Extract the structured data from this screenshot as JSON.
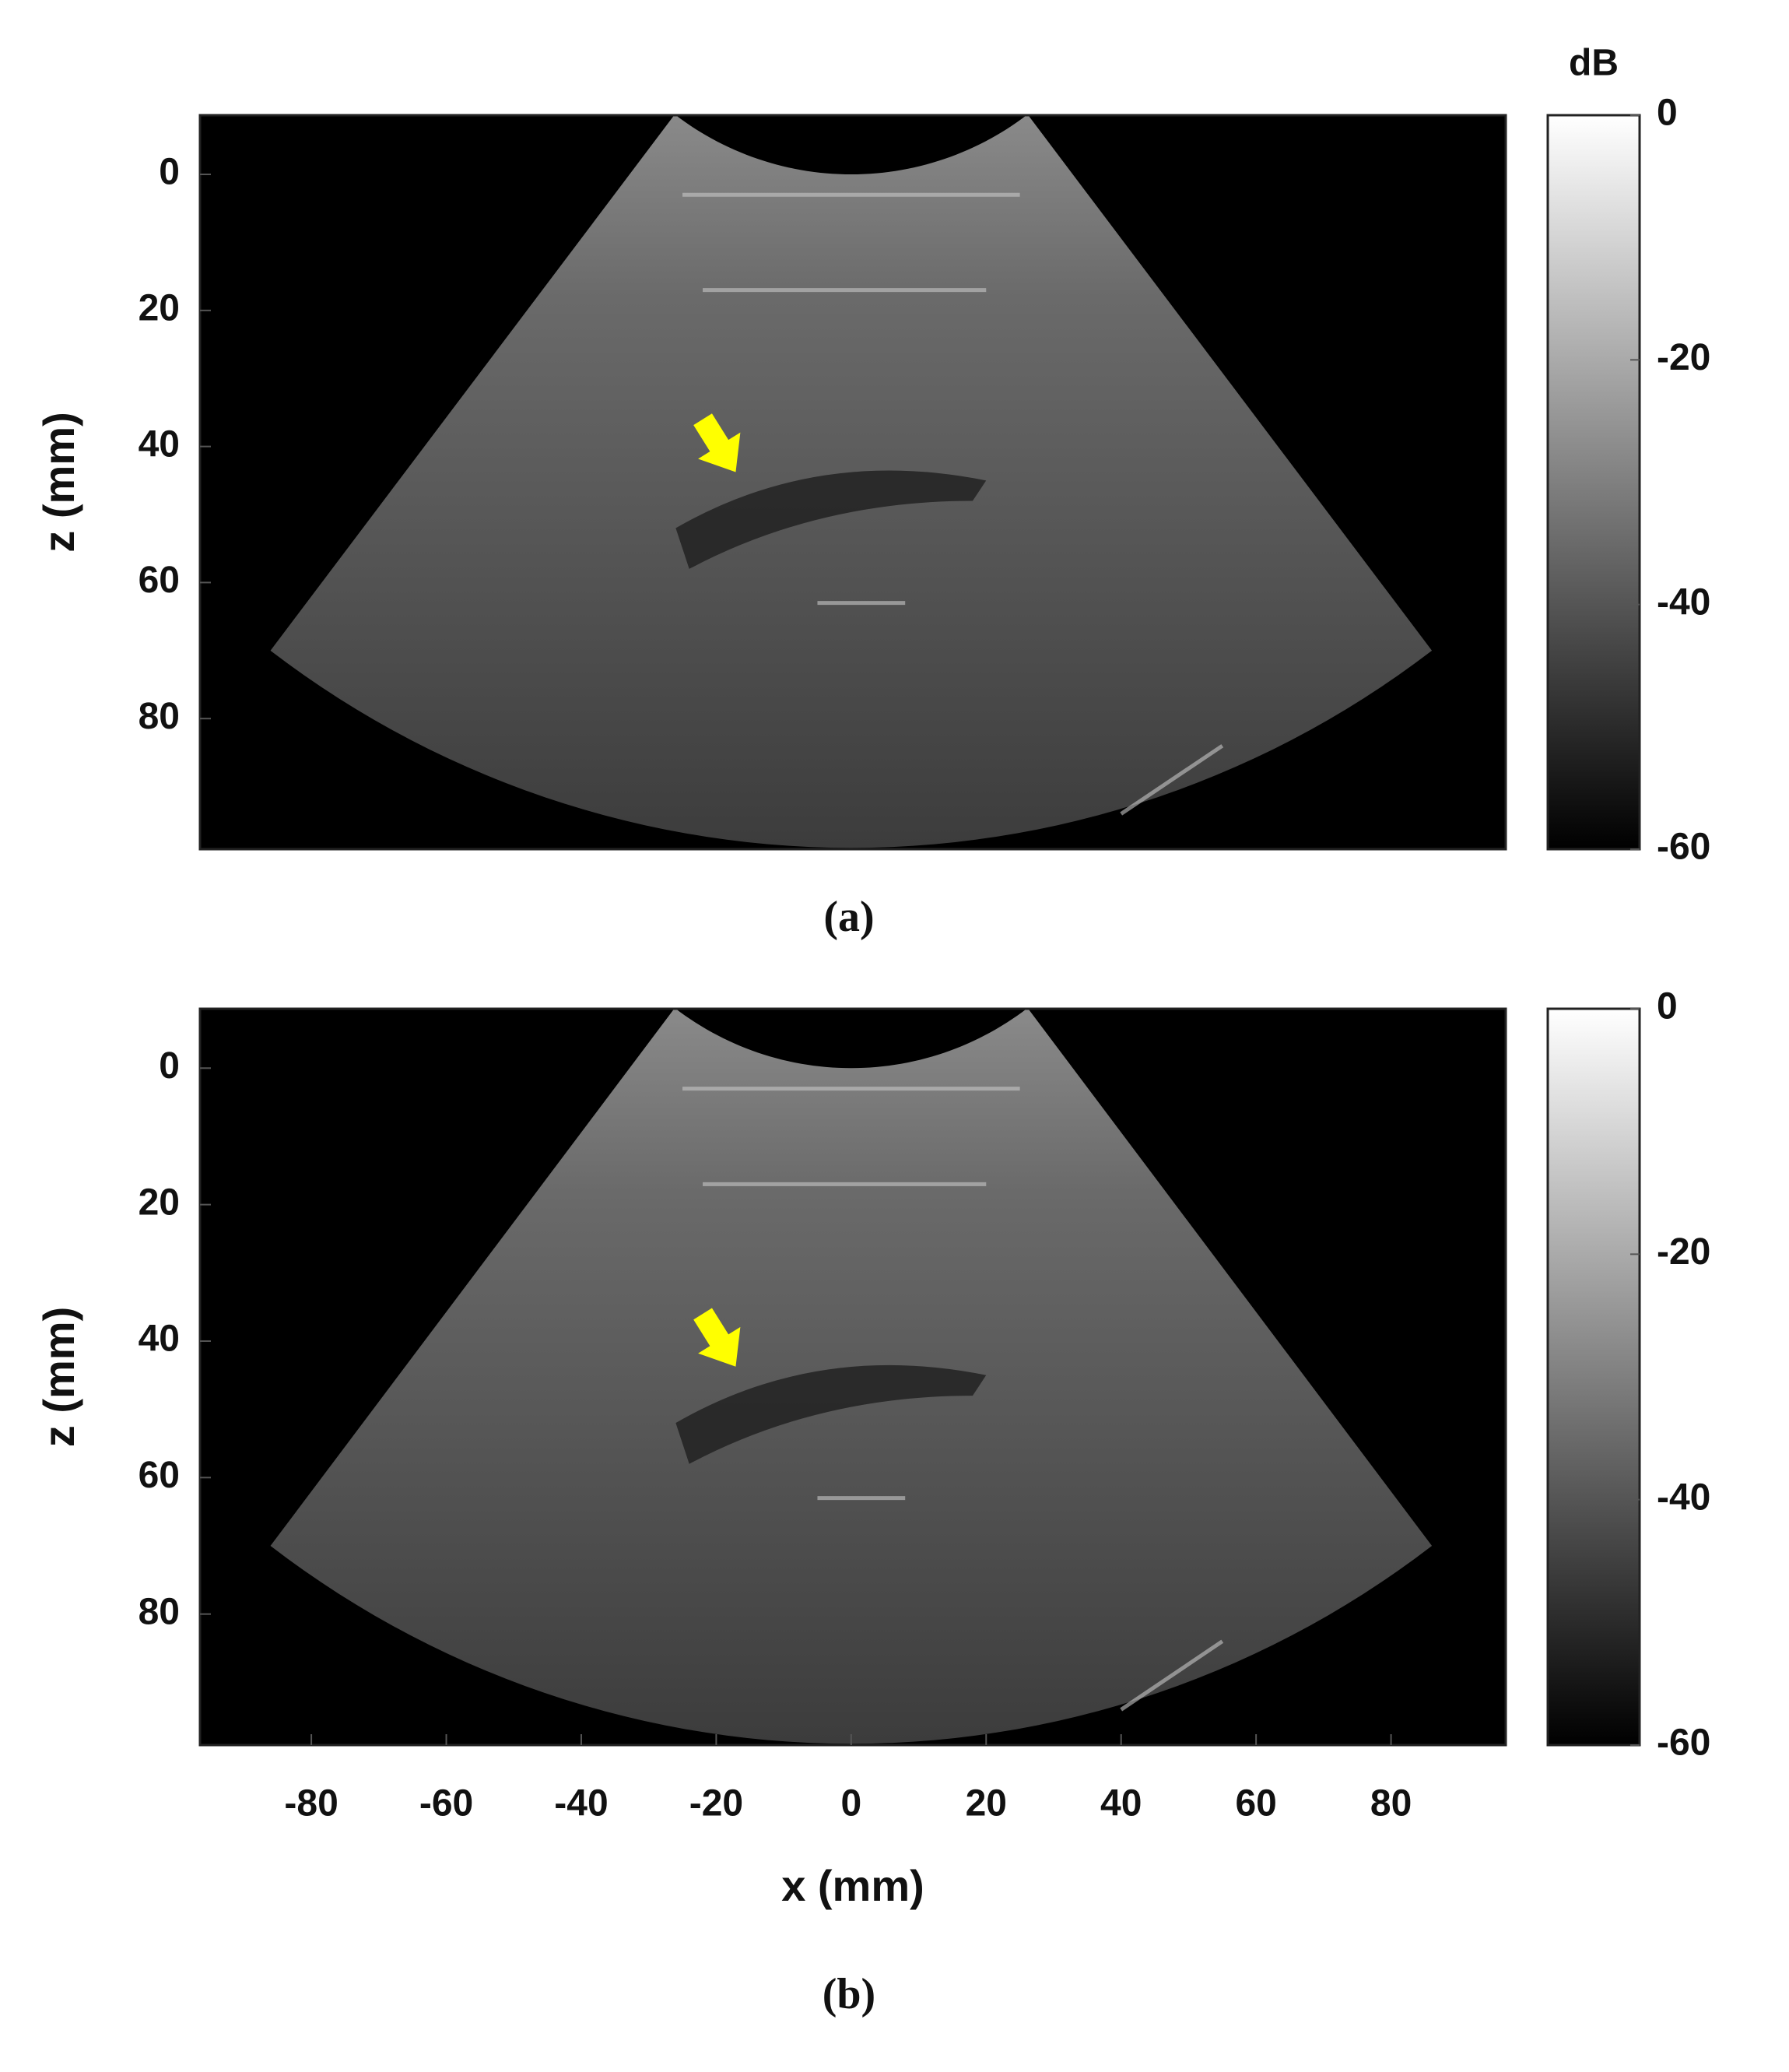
{
  "chart_data": [
    {
      "type": "image",
      "label": "(a)",
      "colorbar_label": "dB",
      "ylabel": "z (mm)",
      "xlim": [
        -96.5,
        97
      ],
      "ylim": [
        -8.7,
        99.2
      ],
      "yticks": [
        0,
        20,
        40,
        60,
        80
      ],
      "clim": [
        -60,
        0
      ],
      "cticks": [
        0,
        -20,
        -40,
        -60
      ]
    },
    {
      "type": "image",
      "label": "(b)",
      "xlabel": "x (mm)",
      "ylabel": "z (mm)",
      "xlim": [
        -96.5,
        97
      ],
      "ylim": [
        -8.7,
        99.2
      ],
      "xticks": [
        -80,
        -60,
        -40,
        -20,
        0,
        20,
        40,
        60,
        80
      ],
      "yticks": [
        0,
        20,
        40,
        60,
        80
      ],
      "clim": [
        -60,
        0
      ],
      "cticks": [
        0,
        -20,
        -40,
        -60
      ]
    }
  ]
}
